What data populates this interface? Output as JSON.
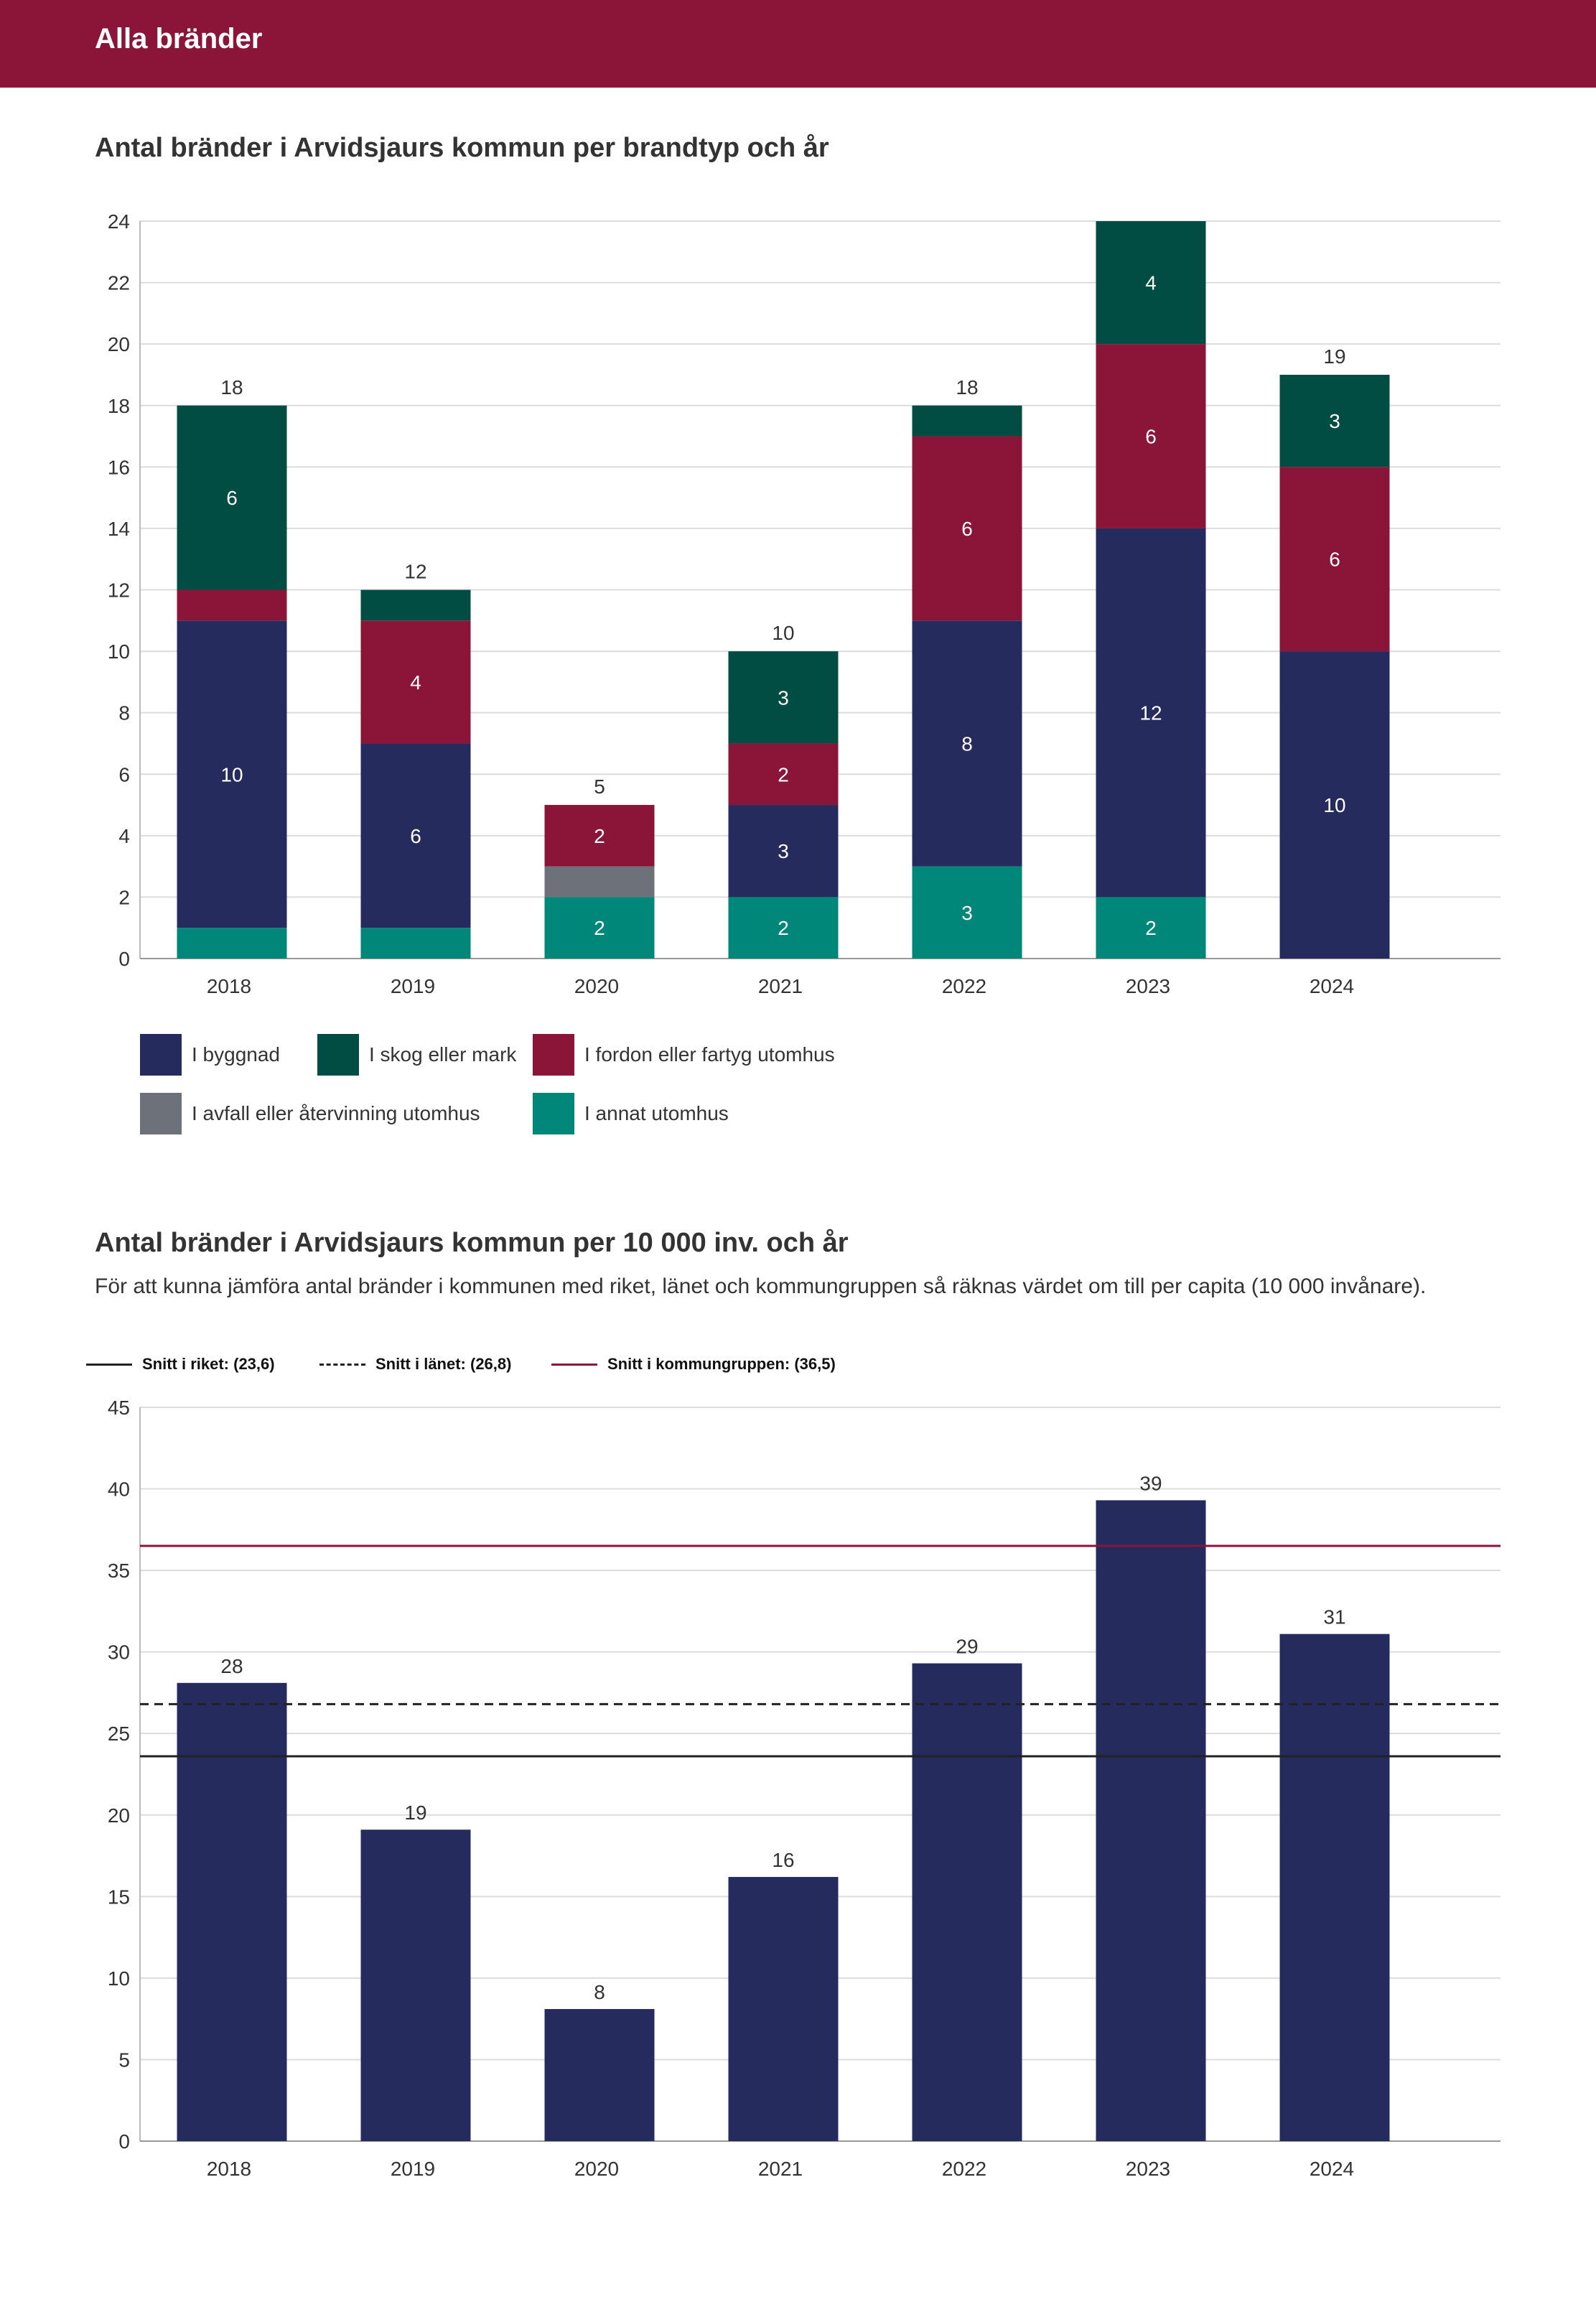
{
  "header": {
    "title": "Alla bränder"
  },
  "chart1": {
    "title": "Antal bränder i Arvidsjaurs kommun per brandtyp och år",
    "legend": [
      {
        "key": "byggnad",
        "label": "I byggnad",
        "color": "#262b5e"
      },
      {
        "key": "skog",
        "label": "I skog eller mark",
        "color": "#024d43"
      },
      {
        "key": "fordon",
        "label": "I fordon eller fartyg utomhus",
        "color": "#8b1538"
      },
      {
        "key": "avfall",
        "label": "I avfall eller återvinning utomhus",
        "color": "#6d717a"
      },
      {
        "key": "annat",
        "label": "I annat utomhus",
        "color": "#00877a"
      }
    ]
  },
  "chart2": {
    "title": "Antal bränder i Arvidsjaurs kommun per 10 000 inv. och år",
    "subtitle": "För att kunna jämföra antal bränder i kommunen med riket, länet och kommungruppen så räknas värdet om till per capita (10 000 invånare).",
    "legend": [
      {
        "label": "Snitt i riket: (23,6)",
        "style": "solid",
        "color": "#222222"
      },
      {
        "label": "Snitt i länet: (26,8)",
        "style": "dashed",
        "color": "#222222"
      },
      {
        "label": "Snitt i kommungruppen: (36,5)",
        "style": "solid",
        "color": "#8b1538"
      }
    ]
  },
  "chart_data": [
    {
      "type": "bar",
      "stacked": true,
      "title": "Antal bränder i Arvidsjaurs kommun per brandtyp och år",
      "categories": [
        "2018",
        "2019",
        "2020",
        "2021",
        "2022",
        "2023",
        "2024"
      ],
      "series": [
        {
          "name": "I annat utomhus",
          "color": "#00877a",
          "values": [
            1,
            1,
            2,
            2,
            3,
            2,
            0
          ]
        },
        {
          "name": "I avfall eller återvinning utomhus",
          "color": "#6d717a",
          "values": [
            0,
            0,
            1,
            0,
            0,
            0,
            0
          ]
        },
        {
          "name": "I byggnad",
          "color": "#262b5e",
          "values": [
            10,
            6,
            0,
            3,
            8,
            12,
            10
          ]
        },
        {
          "name": "I fordon eller fartyg utomhus",
          "color": "#8b1538",
          "values": [
            1,
            4,
            2,
            2,
            6,
            6,
            6
          ]
        },
        {
          "name": "I skog eller mark",
          "color": "#024d43",
          "values": [
            6,
            1,
            0,
            3,
            1,
            4,
            3
          ]
        }
      ],
      "totals": [
        18,
        12,
        5,
        10,
        18,
        24,
        19
      ],
      "show_total_labels": [
        true,
        true,
        true,
        true,
        true,
        false,
        true
      ],
      "min_segment_label": 2,
      "ylim": [
        0,
        24
      ],
      "yticks": [
        0,
        2,
        4,
        6,
        8,
        10,
        12,
        14,
        16,
        18,
        20,
        22,
        24
      ],
      "grid": true,
      "legend_position": "bottom"
    },
    {
      "type": "bar",
      "title": "Antal bränder i Arvidsjaurs kommun per 10 000 inv. och år",
      "categories": [
        "2018",
        "2019",
        "2020",
        "2021",
        "2022",
        "2023",
        "2024"
      ],
      "values": [
        28.1,
        19.1,
        8.1,
        16.2,
        29.3,
        39.3,
        31.1
      ],
      "value_labels": [
        "28",
        "19",
        "8",
        "16",
        "29",
        "39",
        "31"
      ],
      "bar_color": "#262b5e",
      "ylim": [
        0,
        45
      ],
      "yticks": [
        0,
        5,
        10,
        15,
        20,
        25,
        30,
        35,
        40,
        45
      ],
      "reference_lines": [
        {
          "name": "Snitt i riket",
          "value": 23.6,
          "style": "solid",
          "color": "#222222"
        },
        {
          "name": "Snitt i länet",
          "value": 26.8,
          "style": "dashed",
          "color": "#222222"
        },
        {
          "name": "Snitt i kommungruppen",
          "value": 36.5,
          "style": "solid",
          "color": "#8b1538"
        }
      ],
      "grid": true,
      "legend_position": "top"
    }
  ]
}
